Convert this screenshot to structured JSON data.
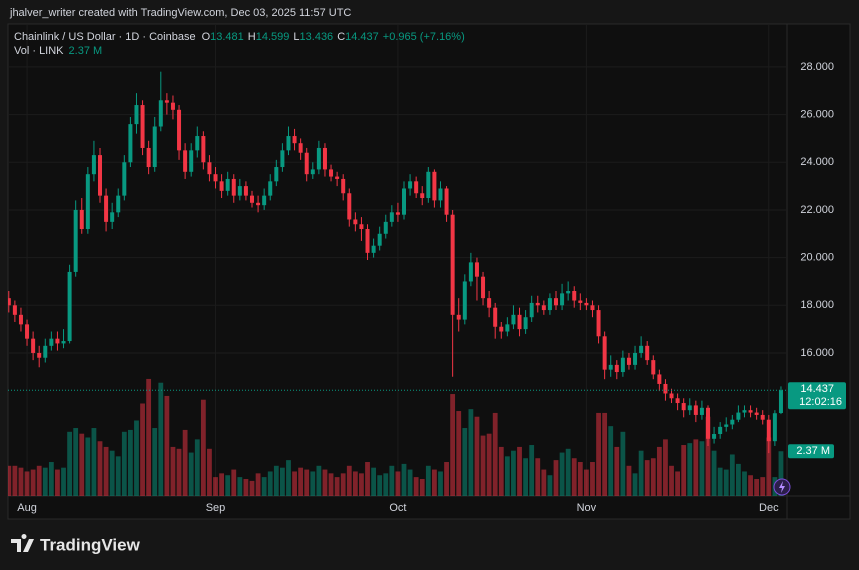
{
  "header": "jhalver_writer created with TradingView.com, Dec 03, 2025 11:57 UTC",
  "watermark": "TradingView",
  "chart_data": {
    "type": "candlestick",
    "title": "Chainlink / US Dollar · 1D · Coinbase",
    "ohlc_labels": [
      "O",
      "H",
      "L",
      "C"
    ],
    "change": "+0.965 (+7.16%)",
    "volume_title": "Vol · LINK",
    "volume_label": "2.37 M",
    "countdown": "12:02:16",
    "up_color": "#089981",
    "down_color": "#f23645",
    "grid": true,
    "categories": [
      null,
      null,
      null,
      "Aug",
      null,
      null,
      null,
      null,
      null,
      null,
      null,
      null,
      null,
      null,
      null,
      null,
      null,
      null,
      null,
      null,
      null,
      null,
      null,
      null,
      null,
      null,
      null,
      null,
      null,
      null,
      null,
      null,
      null,
      null,
      "Sep",
      null,
      null,
      null,
      null,
      null,
      null,
      null,
      null,
      null,
      null,
      null,
      null,
      null,
      null,
      null,
      null,
      null,
      null,
      null,
      null,
      null,
      null,
      null,
      null,
      null,
      null,
      null,
      null,
      null,
      "Oct",
      null,
      null,
      null,
      null,
      null,
      null,
      null,
      null,
      null,
      null,
      null,
      null,
      null,
      null,
      null,
      null,
      null,
      null,
      null,
      null,
      null,
      null,
      null,
      null,
      null,
      null,
      null,
      null,
      null,
      null,
      "Nov",
      null,
      null,
      null,
      null,
      null,
      null,
      null,
      null,
      null,
      null,
      null,
      null,
      null,
      null,
      null,
      null,
      null,
      null,
      null,
      null,
      null,
      null,
      null,
      null,
      null,
      null,
      null,
      null,
      null,
      "Dec",
      null,
      null
    ],
    "open": [
      18.3,
      18.0,
      17.6,
      17.2,
      16.6,
      16.0,
      15.8,
      16.3,
      16.6,
      16.4,
      16.5,
      19.4,
      22.0,
      21.2,
      23.5,
      24.3,
      22.6,
      21.5,
      21.9,
      22.6,
      24.0,
      25.6,
      26.4,
      24.6,
      23.8,
      25.5,
      26.6,
      26.5,
      26.2,
      24.5,
      23.6,
      24.5,
      25.1,
      24.0,
      23.5,
      23.2,
      22.8,
      23.3,
      22.6,
      23.0,
      22.6,
      22.3,
      22.2,
      22.6,
      23.2,
      23.8,
      24.5,
      25.1,
      24.8,
      24.4,
      23.5,
      23.7,
      24.6,
      23.7,
      23.4,
      23.3,
      22.7,
      21.6,
      21.4,
      21.2,
      20.2,
      20.5,
      21.0,
      21.5,
      21.9,
      21.8,
      22.9,
      23.2,
      22.7,
      22.5,
      23.6,
      22.4,
      22.9,
      21.8,
      17.6,
      17.4,
      19.0,
      19.8,
      19.2,
      18.3,
      17.9,
      17.1,
      16.9,
      17.2,
      17.6,
      17.0,
      17.5,
      18.1,
      18.0,
      17.8,
      18.3,
      18.0,
      18.5,
      18.6,
      18.2,
      18.1,
      18.0,
      17.8,
      16.7,
      15.3,
      15.5,
      15.2,
      15.8,
      15.5,
      16.0,
      16.3,
      15.7,
      15.1,
      14.7,
      14.3,
      14.1,
      13.9,
      13.6,
      13.8,
      13.4,
      13.7,
      12.4,
      12.6,
      12.9,
      13.0,
      13.2,
      13.5,
      13.6,
      13.5,
      13.4,
      13.2,
      12.3,
      13.481
    ],
    "high": [
      18.6,
      18.2,
      17.9,
      17.4,
      16.9,
      16.3,
      16.6,
      16.9,
      16.9,
      17.0,
      19.7,
      22.4,
      22.5,
      23.8,
      24.9,
      24.6,
      22.9,
      22.3,
      22.9,
      24.3,
      25.9,
      26.9,
      26.6,
      24.9,
      25.9,
      27.8,
      26.9,
      26.8,
      26.4,
      24.8,
      24.8,
      25.5,
      25.3,
      24.3,
      23.8,
      23.5,
      23.6,
      23.5,
      23.3,
      23.2,
      22.8,
      22.6,
      22.9,
      23.5,
      24.1,
      24.8,
      25.5,
      25.4,
      25.0,
      24.6,
      24.0,
      24.9,
      24.8,
      23.9,
      23.6,
      23.5,
      22.9,
      21.9,
      21.7,
      21.4,
      20.8,
      21.3,
      21.8,
      22.2,
      22.3,
      23.2,
      23.5,
      23.4,
      23.0,
      23.8,
      23.7,
      23.2,
      23.0,
      22.0,
      18.3,
      19.3,
      20.2,
      20.0,
      19.4,
      18.6,
      18.1,
      17.3,
      17.5,
      18.0,
      17.9,
      17.8,
      18.4,
      18.4,
      18.2,
      18.5,
      18.6,
      18.9,
      19.0,
      18.8,
      18.5,
      18.3,
      18.2,
      18.0,
      16.9,
      15.9,
      15.7,
      16.1,
      16.0,
      16.3,
      16.7,
      16.5,
      15.9,
      15.3,
      14.9,
      14.5,
      14.3,
      14.1,
      14.1,
      14.0,
      14.0,
      13.8,
      12.9,
      13.1,
      13.3,
      13.4,
      13.8,
      13.8,
      13.8,
      13.7,
      13.6,
      13.4,
      13.6,
      14.599
    ],
    "low": [
      17.7,
      17.3,
      16.9,
      16.3,
      15.7,
      15.4,
      15.6,
      16.1,
      16.1,
      16.2,
      16.4,
      19.2,
      21.0,
      21.0,
      23.2,
      22.3,
      21.1,
      21.2,
      21.7,
      22.4,
      23.8,
      25.2,
      24.3,
      23.5,
      23.6,
      25.3,
      26.0,
      25.8,
      24.1,
      23.3,
      23.4,
      24.2,
      23.7,
      23.2,
      22.9,
      22.5,
      22.6,
      22.3,
      22.4,
      22.4,
      22.1,
      21.9,
      22.0,
      22.4,
      23.0,
      23.6,
      24.3,
      24.5,
      24.1,
      23.2,
      23.3,
      23.5,
      23.4,
      23.2,
      23.0,
      22.4,
      21.3,
      21.1,
      20.7,
      19.9,
      20.0,
      20.3,
      20.8,
      21.3,
      21.5,
      21.6,
      22.6,
      22.5,
      22.2,
      22.3,
      22.1,
      22.1,
      21.5,
      15.0,
      16.9,
      17.2,
      18.8,
      18.2,
      18.0,
      17.5,
      16.6,
      16.6,
      16.7,
      17.0,
      16.7,
      16.8,
      17.3,
      17.7,
      17.6,
      17.6,
      17.8,
      17.8,
      18.2,
      17.9,
      17.8,
      17.8,
      17.5,
      16.4,
      14.9,
      15.0,
      14.9,
      15.0,
      15.3,
      15.3,
      15.8,
      15.5,
      14.9,
      14.4,
      14.0,
      13.9,
      13.6,
      13.3,
      13.4,
      13.1,
      13.2,
      12.1,
      12.2,
      12.4,
      12.7,
      12.8,
      13.1,
      13.3,
      13.3,
      13.2,
      13.0,
      11.8,
      12.1,
      13.436
    ],
    "close": [
      18.0,
      17.6,
      17.2,
      16.6,
      16.0,
      15.8,
      16.3,
      16.6,
      16.4,
      16.5,
      19.4,
      22.0,
      21.2,
      23.5,
      24.3,
      22.6,
      21.5,
      21.9,
      22.6,
      24.0,
      25.6,
      26.4,
      24.6,
      23.8,
      25.5,
      26.6,
      26.5,
      26.2,
      24.5,
      23.6,
      24.5,
      25.1,
      24.0,
      23.5,
      23.2,
      22.8,
      23.3,
      22.6,
      23.0,
      22.6,
      22.3,
      22.2,
      22.6,
      23.2,
      23.8,
      24.5,
      25.1,
      24.8,
      24.4,
      23.5,
      23.7,
      24.6,
      23.7,
      23.4,
      23.3,
      22.7,
      21.6,
      21.4,
      21.2,
      20.2,
      20.5,
      21.0,
      21.5,
      21.9,
      21.8,
      22.9,
      23.2,
      22.7,
      22.5,
      23.6,
      22.4,
      22.9,
      21.8,
      17.6,
      17.4,
      19.0,
      19.8,
      19.2,
      18.3,
      17.9,
      17.1,
      16.9,
      17.2,
      17.6,
      17.0,
      17.5,
      18.1,
      18.0,
      17.8,
      18.3,
      18.0,
      18.5,
      18.6,
      18.2,
      18.1,
      18.0,
      17.8,
      16.7,
      15.3,
      15.5,
      15.2,
      15.8,
      15.5,
      16.0,
      16.3,
      15.7,
      15.1,
      14.7,
      14.3,
      14.1,
      13.9,
      13.6,
      13.8,
      13.4,
      13.7,
      12.4,
      12.6,
      12.9,
      13.0,
      13.2,
      13.5,
      13.6,
      13.5,
      13.4,
      13.2,
      12.3,
      13.472,
      14.437
    ],
    "volume": [
      1.6,
      1.6,
      1.5,
      1.3,
      1.4,
      1.6,
      1.5,
      1.8,
      1.4,
      1.5,
      3.4,
      3.6,
      3.3,
      3.1,
      3.6,
      2.9,
      2.6,
      2.4,
      2.1,
      3.4,
      3.5,
      4.0,
      4.9,
      6.2,
      3.6,
      6.0,
      5.3,
      2.6,
      2.5,
      3.5,
      2.3,
      3.0,
      5.1,
      2.5,
      1.0,
      1.2,
      1.1,
      1.4,
      1.0,
      0.9,
      0.8,
      1.2,
      1.0,
      1.3,
      1.6,
      1.5,
      1.9,
      1.3,
      1.5,
      1.4,
      1.3,
      1.6,
      1.4,
      1.2,
      1.0,
      1.2,
      1.6,
      1.3,
      1.2,
      1.8,
      1.5,
      1.1,
      1.2,
      1.6,
      1.3,
      1.7,
      1.4,
      1.0,
      0.9,
      1.6,
      1.4,
      1.3,
      1.8,
      5.4,
      4.5,
      3.6,
      4.6,
      4.2,
      3.2,
      3.3,
      4.4,
      2.6,
      2.1,
      2.4,
      2.6,
      2.0,
      2.7,
      2.0,
      1.4,
      1.1,
      1.9,
      2.3,
      2.5,
      2.0,
      1.8,
      1.4,
      1.8,
      4.4,
      4.4,
      3.7,
      2.6,
      3.4,
      1.6,
      1.2,
      2.4,
      1.9,
      2.0,
      2.6,
      3.0,
      1.6,
      1.3,
      2.7,
      2.8,
      3.0,
      2.9,
      4.2,
      2.4,
      1.5,
      1.4,
      2.2,
      1.7,
      1.3,
      1.1,
      0.9,
      1.0,
      3.1,
      1.0,
      2.37
    ],
    "ylim": [
      10,
      29.8
    ],
    "volume_ylim": [
      0,
      25
    ],
    "yticks": [
      {
        "value": 16,
        "label": "16.000"
      },
      {
        "value": 18,
        "label": "18.000"
      },
      {
        "value": 20,
        "label": "20.000"
      },
      {
        "value": 22,
        "label": "22.000"
      },
      {
        "value": 24,
        "label": "24.000"
      },
      {
        "value": 26,
        "label": "26.000"
      },
      {
        "value": 28,
        "label": "28.000"
      }
    ]
  }
}
